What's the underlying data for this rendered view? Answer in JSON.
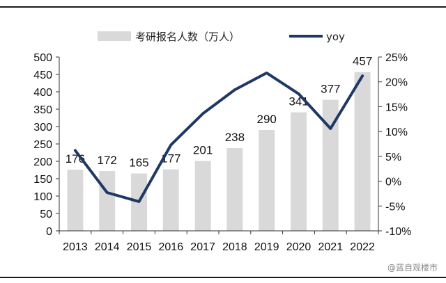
{
  "chart_data": {
    "type": "bar",
    "categories": [
      "2013",
      "2014",
      "2015",
      "2016",
      "2017",
      "2018",
      "2019",
      "2020",
      "2021",
      "2022"
    ],
    "series": [
      {
        "name": "考研报名人数（万人）",
        "kind": "bar",
        "axis": "left",
        "values": [
          176,
          172,
          165,
          177,
          201,
          238,
          290,
          341,
          377,
          457
        ],
        "color": "#d9d9d9"
      },
      {
        "name": "yoy",
        "kind": "line",
        "axis": "right",
        "values": [
          6.2,
          -2.3,
          -4.1,
          7.3,
          13.6,
          18.4,
          21.8,
          17.6,
          10.6,
          21.2
        ],
        "color": "#1f3864"
      }
    ],
    "data_labels": [
      "176",
      "172",
      "165",
      "177",
      "201",
      "238",
      "290",
      "341",
      "377",
      "457"
    ],
    "left_axis": {
      "ylim": [
        0,
        500
      ],
      "ticks": [
        "0",
        "50",
        "100",
        "150",
        "200",
        "250",
        "300",
        "350",
        "400",
        "450",
        "500"
      ]
    },
    "right_axis": {
      "ylim": [
        -10,
        25
      ],
      "ticks": [
        "-10%",
        "-5%",
        "0%",
        "5%",
        "10%",
        "15%",
        "20%",
        "25%"
      ]
    },
    "legend": {
      "placement": "top"
    },
    "grid": false
  },
  "watermark": "@蓝自观楼市"
}
